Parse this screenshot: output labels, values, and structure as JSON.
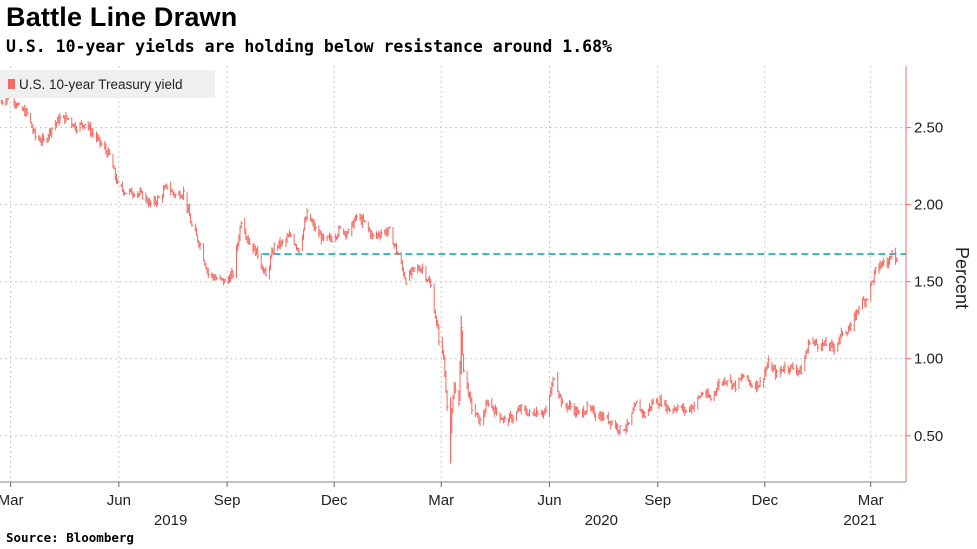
{
  "title": "Battle Line Drawn",
  "subtitle": "U.S. 10-year yields are holding below resistance around 1.68%",
  "source": "Source: Bloomberg",
  "chart_data": {
    "type": "line",
    "ylabel": "Percent",
    "ylim": [
      0.2,
      2.9
    ],
    "yticks": [
      0.5,
      1.0,
      1.5,
      2.0,
      2.5
    ],
    "ytick_labels": [
      "0.50",
      "1.00",
      "1.50",
      "2.00",
      "2.50"
    ],
    "xlim": [
      "2019-02-20",
      "2021-03-31"
    ],
    "xticks": [
      {
        "date": "2019-03-01",
        "label": "Mar"
      },
      {
        "date": "2019-06-01",
        "label": "Jun"
      },
      {
        "date": "2019-09-01",
        "label": "Sep"
      },
      {
        "date": "2019-12-01",
        "label": "Dec"
      },
      {
        "date": "2020-03-01",
        "label": "Mar"
      },
      {
        "date": "2020-06-01",
        "label": "Jun"
      },
      {
        "date": "2020-09-01",
        "label": "Sep"
      },
      {
        "date": "2020-12-01",
        "label": "Dec"
      },
      {
        "date": "2021-03-01",
        "label": "Mar"
      }
    ],
    "year_labels": [
      {
        "date": "2019-07-15",
        "label": "2019"
      },
      {
        "date": "2020-07-15",
        "label": "2020"
      },
      {
        "date": "2021-02-20",
        "label": "2021"
      }
    ],
    "grid": true,
    "legend_position": "top-left",
    "series": [
      {
        "name": "U.S. 10-year Treasury yield",
        "color": "#f26a63",
        "points": [
          [
            "2019-02-20",
            2.66
          ],
          [
            "2019-03-01",
            2.72
          ],
          [
            "2019-03-08",
            2.63
          ],
          [
            "2019-03-15",
            2.59
          ],
          [
            "2019-03-22",
            2.44
          ],
          [
            "2019-03-29",
            2.41
          ],
          [
            "2019-04-05",
            2.5
          ],
          [
            "2019-04-12",
            2.56
          ],
          [
            "2019-04-19",
            2.56
          ],
          [
            "2019-04-26",
            2.5
          ],
          [
            "2019-05-03",
            2.53
          ],
          [
            "2019-05-10",
            2.46
          ],
          [
            "2019-05-17",
            2.39
          ],
          [
            "2019-05-24",
            2.32
          ],
          [
            "2019-05-31",
            2.13
          ],
          [
            "2019-06-07",
            2.08
          ],
          [
            "2019-06-14",
            2.08
          ],
          [
            "2019-06-21",
            2.06
          ],
          [
            "2019-06-28",
            2.0
          ],
          [
            "2019-07-05",
            2.04
          ],
          [
            "2019-07-12",
            2.12
          ],
          [
            "2019-07-19",
            2.06
          ],
          [
            "2019-07-26",
            2.08
          ],
          [
            "2019-08-02",
            1.86
          ],
          [
            "2019-08-09",
            1.74
          ],
          [
            "2019-08-16",
            1.55
          ],
          [
            "2019-08-23",
            1.52
          ],
          [
            "2019-08-30",
            1.5
          ],
          [
            "2019-09-06",
            1.55
          ],
          [
            "2019-09-13",
            1.9
          ],
          [
            "2019-09-20",
            1.75
          ],
          [
            "2019-09-27",
            1.68
          ],
          [
            "2019-10-04",
            1.53
          ],
          [
            "2019-10-11",
            1.73
          ],
          [
            "2019-10-18",
            1.75
          ],
          [
            "2019-10-25",
            1.8
          ],
          [
            "2019-11-01",
            1.71
          ],
          [
            "2019-11-08",
            1.94
          ],
          [
            "2019-11-15",
            1.84
          ],
          [
            "2019-11-22",
            1.77
          ],
          [
            "2019-11-29",
            1.78
          ],
          [
            "2019-12-06",
            1.84
          ],
          [
            "2019-12-13",
            1.82
          ],
          [
            "2019-12-20",
            1.92
          ],
          [
            "2019-12-27",
            1.88
          ],
          [
            "2020-01-03",
            1.79
          ],
          [
            "2020-01-10",
            1.82
          ],
          [
            "2020-01-17",
            1.83
          ],
          [
            "2020-01-24",
            1.68
          ],
          [
            "2020-01-31",
            1.51
          ],
          [
            "2020-02-07",
            1.58
          ],
          [
            "2020-02-14",
            1.59
          ],
          [
            "2020-02-21",
            1.47
          ],
          [
            "2020-02-28",
            1.13
          ],
          [
            "2020-03-03",
            1.0
          ],
          [
            "2020-03-06",
            0.71
          ],
          [
            "2020-03-09",
            0.54
          ],
          [
            "2020-03-12",
            0.82
          ],
          [
            "2020-03-16",
            0.73
          ],
          [
            "2020-03-18",
            1.18
          ],
          [
            "2020-03-20",
            0.92
          ],
          [
            "2020-03-27",
            0.68
          ],
          [
            "2020-04-03",
            0.59
          ],
          [
            "2020-04-10",
            0.72
          ],
          [
            "2020-04-17",
            0.65
          ],
          [
            "2020-04-24",
            0.6
          ],
          [
            "2020-05-01",
            0.62
          ],
          [
            "2020-05-08",
            0.68
          ],
          [
            "2020-05-15",
            0.64
          ],
          [
            "2020-05-22",
            0.66
          ],
          [
            "2020-05-29",
            0.65
          ],
          [
            "2020-06-05",
            0.89
          ],
          [
            "2020-06-12",
            0.7
          ],
          [
            "2020-06-19",
            0.69
          ],
          [
            "2020-06-26",
            0.64
          ],
          [
            "2020-07-03",
            0.68
          ],
          [
            "2020-07-10",
            0.64
          ],
          [
            "2020-07-17",
            0.62
          ],
          [
            "2020-07-24",
            0.59
          ],
          [
            "2020-07-31",
            0.54
          ],
          [
            "2020-08-07",
            0.57
          ],
          [
            "2020-08-14",
            0.71
          ],
          [
            "2020-08-21",
            0.63
          ],
          [
            "2020-08-28",
            0.72
          ],
          [
            "2020-09-04",
            0.72
          ],
          [
            "2020-09-11",
            0.67
          ],
          [
            "2020-09-18",
            0.69
          ],
          [
            "2020-09-25",
            0.66
          ],
          [
            "2020-10-02",
            0.7
          ],
          [
            "2020-10-09",
            0.78
          ],
          [
            "2020-10-16",
            0.74
          ],
          [
            "2020-10-23",
            0.84
          ],
          [
            "2020-10-30",
            0.87
          ],
          [
            "2020-11-06",
            0.82
          ],
          [
            "2020-11-13",
            0.89
          ],
          [
            "2020-11-20",
            0.83
          ],
          [
            "2020-11-27",
            0.84
          ],
          [
            "2020-12-04",
            0.97
          ],
          [
            "2020-12-11",
            0.9
          ],
          [
            "2020-12-18",
            0.95
          ],
          [
            "2020-12-25",
            0.94
          ],
          [
            "2021-01-01",
            0.92
          ],
          [
            "2021-01-08",
            1.12
          ],
          [
            "2021-01-15",
            1.09
          ],
          [
            "2021-01-22",
            1.09
          ],
          [
            "2021-01-29",
            1.07
          ],
          [
            "2021-02-05",
            1.17
          ],
          [
            "2021-02-12",
            1.2
          ],
          [
            "2021-02-19",
            1.34
          ],
          [
            "2021-02-26",
            1.4
          ],
          [
            "2021-03-05",
            1.57
          ],
          [
            "2021-03-12",
            1.63
          ],
          [
            "2021-03-16",
            1.62
          ],
          [
            "2021-03-19",
            1.72
          ],
          [
            "2021-03-23",
            1.63
          ]
        ]
      }
    ],
    "annotations": [
      {
        "type": "hline",
        "y": 1.68,
        "x_start": "2019-10-01",
        "x_end": "2021-03-31",
        "color": "#2ec4c4",
        "style": "dashed"
      }
    ]
  }
}
